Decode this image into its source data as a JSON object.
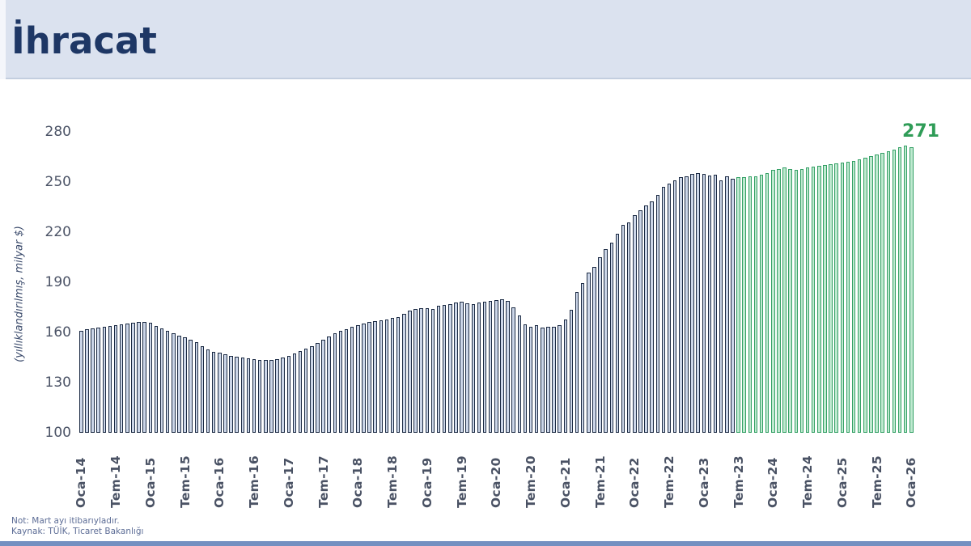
{
  "header": {
    "title": "İhracat"
  },
  "notes": {
    "line1": "Not: Mart ayı itibarıyladır.",
    "line2": "Kaynak: TÜİK, Ticaret Bakanlığı"
  },
  "colors": {
    "header_bg": "#dbe2ef",
    "title_text": "#1e3765",
    "actual_bar_fill": "#ccd6e8",
    "actual_bar_edge": "#1c2b44",
    "forecast_bar_fill": "#bfe9d0",
    "forecast_bar_edge": "#34a065",
    "annotation_text": "#2f9c57",
    "tick_text": "#4b5366",
    "bottom_strip": "#7490c1"
  },
  "chart_data": {
    "type": "bar",
    "title": "İhracat",
    "ylabel": "(yıllıklandırılmış, milyar $)",
    "xlabel": "",
    "ylim": [
      100,
      280
    ],
    "yticks": [
      100,
      130,
      160,
      190,
      220,
      250,
      280
    ],
    "grid": false,
    "legend": false,
    "x_unit": "month",
    "x_range": [
      "Oca-14",
      "Oca-26"
    ],
    "x_tick_labels": [
      "Oca-14",
      "Tem-14",
      "Oca-15",
      "Tem-15",
      "Oca-16",
      "Tem-16",
      "Oca-17",
      "Tem-17",
      "Oca-18",
      "Tem-18",
      "Oca-19",
      "Tem-19",
      "Oca-20",
      "Tem-20",
      "Oca-21",
      "Tem-21",
      "Oca-22",
      "Tem-22",
      "Oca-23",
      "Tem-23",
      "Oca-24",
      "Tem-24",
      "Oca-25",
      "Tem-25",
      "Oca-26"
    ],
    "annotation": {
      "text": "271",
      "refers_to": "Oca-26"
    },
    "series": [
      {
        "name": "actual",
        "start": "Oca-14",
        "end": "Haz-23",
        "values": [
          161,
          162,
          162.5,
          163,
          163.5,
          164,
          164.5,
          165,
          165.5,
          166,
          166.5,
          166.5,
          166,
          164,
          162.5,
          161,
          159.5,
          158,
          157,
          155.5,
          154,
          152,
          150,
          148.5,
          148,
          147,
          146,
          145.5,
          145,
          144.5,
          144,
          143.5,
          143.5,
          143.5,
          144,
          145,
          146,
          147.5,
          149,
          150.5,
          152,
          153.5,
          155.5,
          157.5,
          159.5,
          161,
          162,
          163.5,
          164.5,
          165.5,
          166.5,
          167,
          167.5,
          168,
          168.5,
          169,
          171,
          173,
          174,
          174.5,
          174.5,
          174,
          176,
          176.5,
          177,
          178,
          178.5,
          177.5,
          177,
          178,
          178.5,
          179,
          179.5,
          180,
          179,
          175,
          170,
          165,
          163.5,
          164.5,
          163,
          163.5,
          163.5,
          164.5,
          168,
          173.5,
          184,
          189.5,
          196,
          199,
          205,
          210,
          213.5,
          219,
          224.5,
          226,
          230,
          233,
          236,
          238.5,
          242.5,
          247,
          249,
          251,
          253,
          253.5,
          255,
          255.5,
          255,
          254,
          254.5,
          251,
          253.5,
          252
        ]
      },
      {
        "name": "forecast",
        "start": "Tem-23",
        "end": "Oca-26",
        "values": [
          253,
          253,
          253.5,
          253.5,
          254.5,
          255.5,
          257.5,
          258,
          258.5,
          258,
          257.5,
          258,
          258.5,
          259,
          259.5,
          260,
          260.5,
          261,
          261.5,
          262,
          262.5,
          263.5,
          264.5,
          265.5,
          266.5,
          267.5,
          268.5,
          269.5,
          271,
          272,
          271
        ]
      }
    ]
  }
}
